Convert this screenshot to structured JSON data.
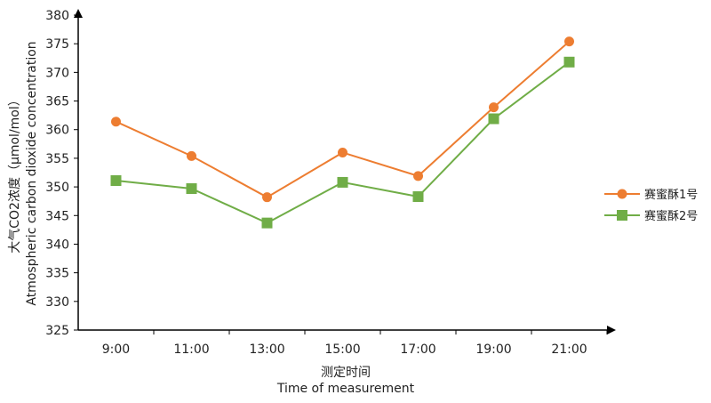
{
  "chart_data": {
    "type": "line",
    "title": "",
    "xlabel_cn": "测定时间",
    "xlabel_en": "Time of measurement",
    "ylabel_cn": "大气CO2浓度（μmol/mol）",
    "ylabel_en": "Atmospheric carbon dioxide concentration",
    "categories": [
      "9:00",
      "11:00",
      "13:00",
      "15:00",
      "17:00",
      "19:00",
      "21:00"
    ],
    "ylim": [
      325,
      380
    ],
    "yticks": [
      "325",
      "330",
      "335",
      "340",
      "345",
      "350",
      "355",
      "360",
      "365",
      "370",
      "375",
      "380"
    ],
    "grid": false,
    "legend_position": "right",
    "series": [
      {
        "name": "赛蜜酥1号",
        "color": "#ED7D31",
        "marker": "circle",
        "values": [
          361.4,
          355.4,
          348.2,
          356.0,
          351.9,
          363.9,
          375.4
        ]
      },
      {
        "name": "赛蜜酥2号",
        "color": "#70AD47",
        "marker": "square",
        "values": [
          351.1,
          349.7,
          343.7,
          350.8,
          348.3,
          361.9,
          371.8
        ]
      }
    ]
  }
}
